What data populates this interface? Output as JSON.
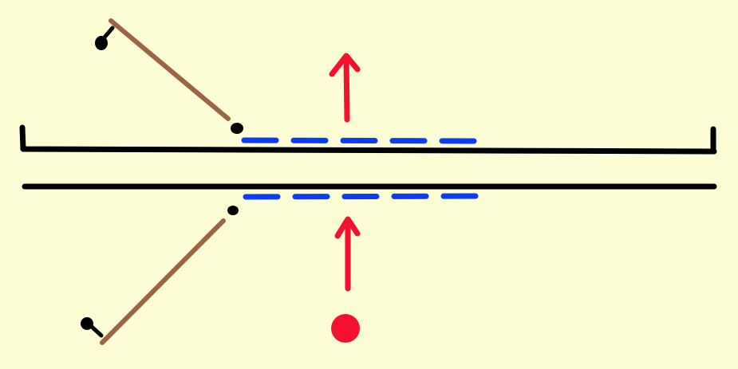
{
  "colors": {
    "background": "#fdfdd5",
    "wall": "#000000",
    "rod": "#9c6440",
    "gap_marker": "#0d3df0",
    "arrow": "#f5102e",
    "ball": "#f5102e"
  },
  "icons": {
    "up_arrow": "arrow-up-icon",
    "ball": "ball-icon",
    "pivot": "pivot-dot-icon"
  }
}
